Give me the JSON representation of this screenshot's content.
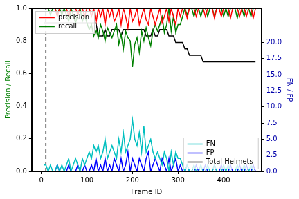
{
  "chart_data": {
    "type": "line",
    "xlabel": "Frame ID",
    "ylabel": "Precision / Recall",
    "y2label": "FN / FP",
    "grid": false,
    "xlim": [
      -21,
      483
    ],
    "xticks": [
      0,
      100,
      200,
      300,
      400
    ],
    "ylim": [
      0,
      1
    ],
    "yticks": [
      {
        "value": 0,
        "label": "0.0"
      },
      0.2,
      0.4,
      0.6,
      0.8,
      {
        "value": 1,
        "label": "1.0"
      }
    ],
    "y2lim": [
      0,
      25.3
    ],
    "y2ticks": [
      {
        "value": 0,
        "label": "0.0"
      },
      2.5,
      {
        "value": 5,
        "label": "5.0"
      },
      7.5,
      {
        "value": 10,
        "label": "10.0"
      },
      12.5,
      {
        "value": 15,
        "label": "15.0"
      },
      17.5,
      {
        "value": 20,
        "label": "20.0"
      }
    ],
    "x": [
      5,
      10,
      15,
      20,
      25,
      30,
      35,
      40,
      45,
      50,
      55,
      60,
      65,
      70,
      75,
      80,
      85,
      90,
      95,
      100,
      105,
      110,
      115,
      120,
      125,
      130,
      135,
      140,
      145,
      150,
      155,
      160,
      165,
      170,
      175,
      180,
      185,
      190,
      195,
      200,
      205,
      210,
      215,
      220,
      225,
      230,
      235,
      240,
      245,
      250,
      255,
      260,
      265,
      270,
      275,
      280,
      285,
      290,
      295,
      300,
      305,
      310,
      315,
      320,
      325,
      330,
      335,
      340,
      345,
      350,
      355,
      360,
      365,
      370,
      375,
      380,
      385,
      390,
      395,
      400,
      405,
      410,
      415,
      420,
      425,
      430,
      435,
      440,
      445,
      450,
      455,
      460,
      465,
      470
    ],
    "series": [
      {
        "name": "precision",
        "color": "#ff0000",
        "legend": "upper left",
        "values": [
          1,
          1,
          1,
          1,
          1,
          1,
          0.95,
          1,
          1,
          1,
          1,
          0.95,
          1,
          1,
          1,
          0.96,
          1,
          1,
          0.95,
          1,
          1,
          0.95,
          1,
          0.91,
          1,
          0.95,
          1,
          0.9,
          1,
          0.95,
          1,
          0.92,
          0.95,
          1,
          0.9,
          1,
          0.95,
          0.88,
          1,
          0.92,
          0.95,
          1,
          0.9,
          0.95,
          1,
          0.93,
          0.9,
          1,
          0.95,
          0.9,
          0.95,
          1,
          0.91,
          0.95,
          1,
          0.92,
          1,
          0.95,
          0.9,
          1,
          0.95,
          1,
          1,
          0.94,
          1,
          1,
          1,
          0.95,
          1,
          1,
          1,
          0.95,
          1,
          1,
          1,
          0.94,
          1,
          1,
          0.95,
          1,
          1,
          1,
          0.94,
          1,
          1,
          1,
          0.95,
          1,
          1,
          0.95,
          1,
          1,
          0.94,
          1
        ]
      },
      {
        "name": "recall",
        "color": "#008000",
        "legend": "upper left",
        "values": [
          1,
          1,
          1,
          0.96,
          1,
          1,
          0.96,
          1,
          0.96,
          1,
          0.96,
          0.92,
          1,
          0.96,
          0.91,
          0.96,
          1,
          0.92,
          0.96,
          0.91,
          0.87,
          0.9,
          0.83,
          0.87,
          0.82,
          0.9,
          0.86,
          0.8,
          0.88,
          0.85,
          0.82,
          0.86,
          0.9,
          0.78,
          0.84,
          0.75,
          0.86,
          0.82,
          0.8,
          0.64,
          0.78,
          0.82,
          0.73,
          0.86,
          0.8,
          0.88,
          0.82,
          0.77,
          0.86,
          0.9,
          0.86,
          0.9,
          0.95,
          0.85,
          0.9,
          1,
          0.86,
          0.95,
          0.85,
          0.9,
          0.9,
          0.95,
          1,
          0.96,
          1,
          1,
          0.95,
          1,
          1,
          0.95,
          1,
          1,
          0.95,
          1,
          1,
          0.95,
          1,
          1,
          1,
          0.95,
          1,
          0.95,
          1,
          1,
          1,
          0.94,
          1,
          1,
          0.95,
          1,
          1,
          0.95,
          1,
          1
        ]
      },
      {
        "name": "FN",
        "color": "#00bfbf",
        "axis": "y2",
        "legend": "lower right",
        "values": [
          1,
          1,
          0,
          1,
          0,
          0,
          1,
          0,
          1,
          0,
          1,
          2,
          0,
          1,
          2,
          1,
          0,
          2,
          1,
          2,
          3,
          2,
          4,
          3,
          4,
          2,
          3,
          5,
          2,
          3,
          4,
          3,
          2,
          5,
          3,
          6,
          3,
          4,
          5,
          8,
          5,
          4,
          6,
          3,
          7,
          3,
          4,
          5,
          3,
          2,
          3,
          2,
          1,
          3,
          2,
          0,
          3,
          1,
          3,
          2,
          2,
          1,
          0,
          1,
          0,
          0,
          1,
          0,
          0,
          1,
          0,
          0,
          1,
          0,
          0,
          1,
          0,
          0,
          0,
          1,
          0,
          1,
          0,
          0,
          0,
          1,
          0,
          0,
          1,
          0,
          0,
          1,
          0,
          0
        ]
      },
      {
        "name": "FP",
        "color": "#0000ff",
        "axis": "y2",
        "legend": "lower right",
        "values": [
          0,
          0,
          0,
          0,
          0,
          0,
          1,
          0,
          0,
          0,
          0,
          1,
          0,
          0,
          0,
          1,
          0,
          0,
          1,
          0,
          0,
          1,
          0,
          2,
          0,
          1,
          0,
          2,
          0,
          1,
          0,
          2,
          1,
          0,
          2,
          0,
          1,
          3,
          0,
          2,
          1,
          0,
          2,
          1,
          0,
          2,
          3,
          0,
          1,
          2,
          1,
          0,
          2,
          1,
          0,
          2,
          0,
          1,
          2,
          0,
          1,
          0,
          0,
          1,
          0,
          0,
          0,
          1,
          0,
          0,
          0,
          1,
          0,
          0,
          0,
          1,
          0,
          0,
          1,
          0,
          0,
          0,
          1,
          0,
          0,
          0,
          1,
          0,
          0,
          1,
          0,
          0,
          1,
          0
        ]
      },
      {
        "name": "Total Helmets",
        "color": "#000000",
        "axis": "y2",
        "legend": "lower right",
        "values": [
          23,
          23,
          23,
          23,
          23,
          23,
          23,
          23,
          23,
          23,
          23,
          23,
          23,
          23,
          23,
          23,
          23,
          23,
          23,
          23,
          23,
          23,
          23,
          23,
          21,
          21,
          21,
          22,
          21,
          21,
          22,
          22,
          22,
          22,
          21,
          22,
          22,
          22,
          22,
          22,
          22,
          22,
          22,
          22,
          22,
          21,
          21,
          21,
          22,
          21,
          21,
          22,
          22,
          22,
          22,
          21,
          21,
          21,
          20,
          20,
          20,
          20,
          19,
          19,
          18,
          18,
          18,
          18,
          18,
          18,
          17,
          17,
          17,
          17,
          17,
          17,
          17,
          17,
          17,
          17,
          17,
          17,
          17,
          17,
          17,
          17,
          17,
          17,
          17,
          17,
          17,
          17,
          17,
          17
        ]
      },
      {
        "color": "#000000",
        "line_style": "dashed",
        "x": [
          10,
          10
        ],
        "values": [
          0,
          1
        ]
      }
    ]
  }
}
